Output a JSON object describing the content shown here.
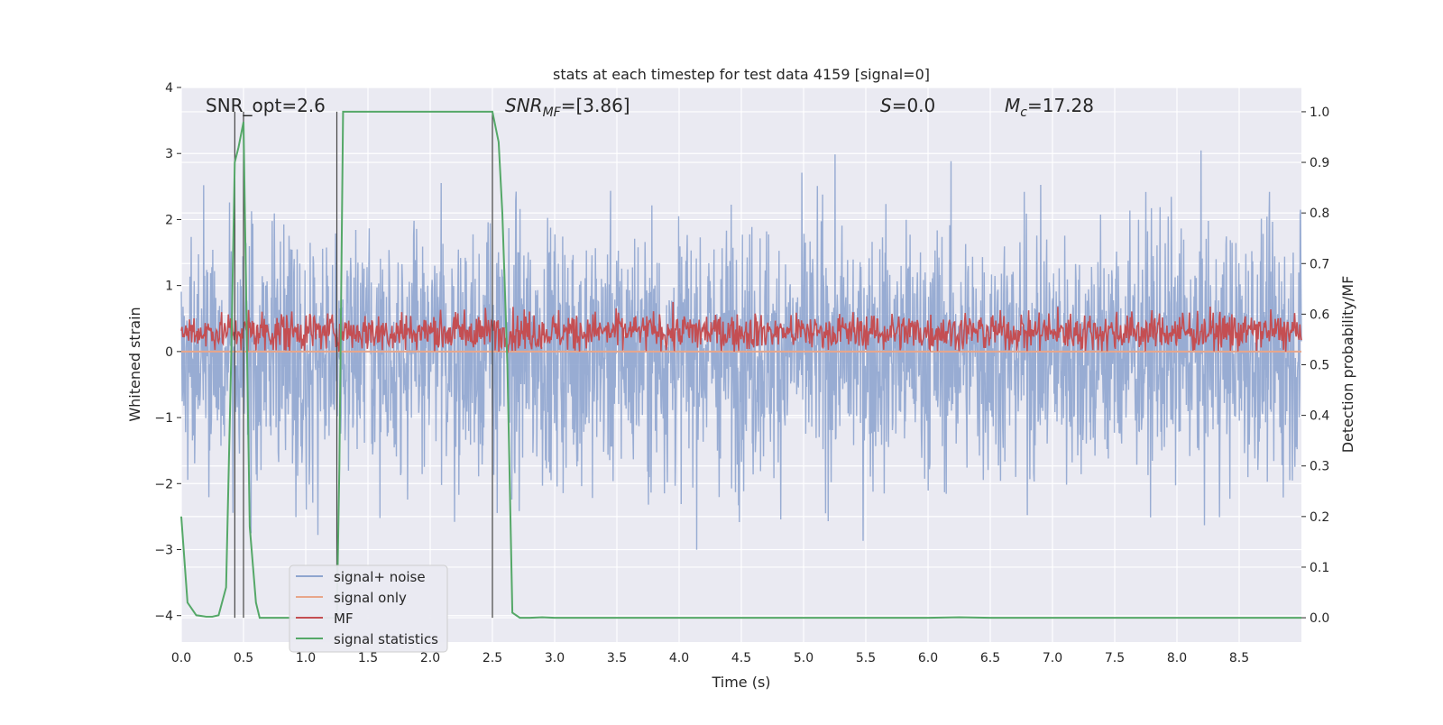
{
  "chart_data": {
    "type": "line",
    "title": "stats at each timestep for test data 4159 [signal=0]",
    "xlabel": "Time (s)",
    "ylabel": "Whitened strain",
    "y2label": "Detection probability/MF",
    "xlim": [
      0.0,
      9.0
    ],
    "ylim": [
      -4.4,
      4.0
    ],
    "y2lim": [
      -0.048,
      1.048
    ],
    "xticks": [
      "0.0",
      "0.5",
      "1.0",
      "1.5",
      "2.0",
      "2.5",
      "3.0",
      "3.5",
      "4.0",
      "4.5",
      "5.0",
      "5.5",
      "6.0",
      "6.5",
      "7.0",
      "7.5",
      "8.0",
      "8.5"
    ],
    "yticks": [
      "4",
      "3",
      "2",
      "1",
      "0",
      "−1",
      "−2",
      "−3",
      "−4"
    ],
    "y2ticks": [
      "1.0",
      "0.9",
      "0.8",
      "0.7",
      "0.6",
      "0.5",
      "0.4",
      "0.3",
      "0.2",
      "0.1",
      "0.0"
    ],
    "grid": true,
    "legend_position": "bottom-left",
    "annotations": {
      "snr_opt": "SNR_opt=2.6",
      "snr_mf_main": "SNR",
      "snr_mf_sub": "MF",
      "snr_mf_value": "=[3.86]",
      "s_main": "S",
      "s_value": "=0.0",
      "mc_main": "M",
      "mc_sub": "c",
      "mc_value": "=17.28"
    },
    "series": [
      {
        "name": "signal+ noise",
        "color": "#8fa5cf",
        "style": "noise",
        "sigma": 0.95,
        "spike_max": 3.6
      },
      {
        "name": "signal only",
        "color": "#e8a68a",
        "values_constant": 0.0
      },
      {
        "name": "MF",
        "color": "#c44e52",
        "style": "noise",
        "mean": 0.3,
        "sigma": 0.15
      },
      {
        "name": "signal statistics",
        "color": "#55a868",
        "axis": "right",
        "x": [
          0.0,
          0.05,
          0.12,
          0.2,
          0.25,
          0.3,
          0.36,
          0.4,
          0.43,
          0.46,
          0.5,
          0.55,
          0.6,
          0.63,
          0.7,
          0.8,
          0.9,
          1.0,
          1.1,
          1.2,
          1.25,
          1.27,
          1.3,
          1.4,
          1.5,
          1.6,
          1.8,
          2.0,
          2.2,
          2.4,
          2.48,
          2.5,
          2.55,
          2.58,
          2.62,
          2.66,
          2.72,
          2.8,
          2.9,
          3.0,
          3.5,
          4.0,
          5.0,
          6.0,
          6.25,
          6.5,
          7.0,
          8.0,
          9.0
        ],
        "y": [
          0.2,
          0.03,
          0.005,
          0.002,
          0.002,
          0.005,
          0.06,
          0.5,
          0.9,
          0.93,
          0.98,
          0.18,
          0.03,
          0.0,
          0.0,
          0.0,
          0.0,
          0.0,
          0.0,
          0.0,
          0.0,
          0.3,
          1.0,
          1.0,
          1.0,
          1.0,
          1.0,
          1.0,
          1.0,
          1.0,
          1.0,
          1.0,
          0.94,
          0.8,
          0.5,
          0.01,
          0.0,
          0.0,
          0.001,
          0.0,
          0.0,
          0.0,
          0.0,
          0.0,
          0.001,
          0.0,
          0.0,
          0.0,
          0.0
        ]
      }
    ],
    "vlines_x": [
      0.43,
      0.5,
      1.25,
      2.5
    ]
  }
}
